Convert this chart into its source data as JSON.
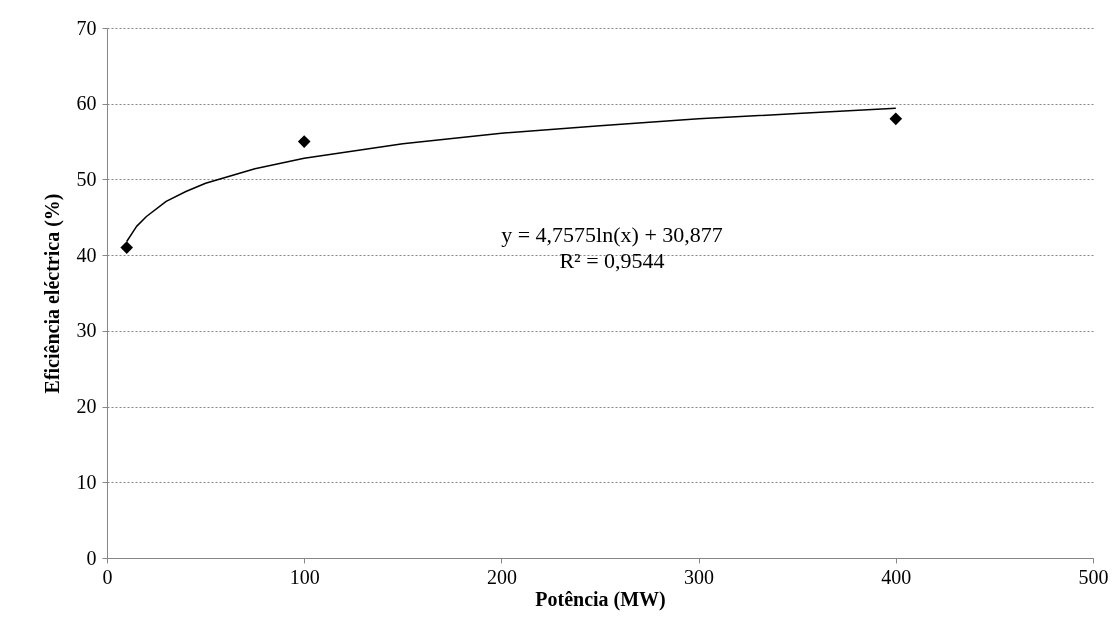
{
  "chart_data": {
    "type": "scatter",
    "xlabel": "Potência (MW)",
    "ylabel": "Eficiência eléctrica (%)",
    "xlim": [
      0,
      500
    ],
    "xticks": [
      0,
      100,
      200,
      300,
      400,
      500
    ],
    "ylim": [
      0,
      70
    ],
    "yticks": [
      0,
      10,
      20,
      30,
      40,
      50,
      60,
      70
    ],
    "grid": "y",
    "series": [
      {
        "color": "#000000",
        "marker": "diamond",
        "x": [
          10,
          100,
          400
        ],
        "values": [
          41,
          55,
          58
        ]
      },
      {
        "type": "line",
        "color": "#000000",
        "line_style": "solid",
        "x": [
          10,
          15,
          20,
          30,
          40,
          50,
          75,
          100,
          150,
          200,
          250,
          300,
          350,
          400
        ],
        "values": [
          41.8,
          43.8,
          45.1,
          47.1,
          48.4,
          49.5,
          51.4,
          52.8,
          54.7,
          56.1,
          57.1,
          58.0,
          58.7,
          59.4
        ]
      }
    ],
    "annotations": [
      "y = 4,7575ln(x) + 30,877",
      "R² = 0,9544"
    ]
  }
}
